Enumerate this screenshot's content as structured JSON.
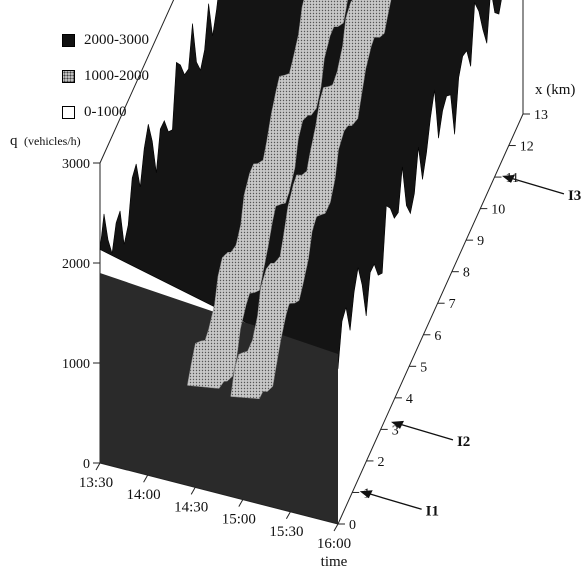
{
  "chart_data": {
    "type": "3d-surface",
    "title": "",
    "legend": {
      "placement": "top-left",
      "items": [
        {
          "label": "2000-3000",
          "color": "#111111",
          "pattern": "solid"
        },
        {
          "label": "1000-2000",
          "color": "#9a9a9a",
          "pattern": "dotted"
        },
        {
          "label": "0-1000",
          "color": "#ffffff",
          "pattern": "empty"
        }
      ]
    },
    "z_axis": {
      "label": "q",
      "unit": "(vehicles/h)",
      "ticks": [
        "0",
        "1000",
        "2000",
        "3000"
      ],
      "range": [
        0,
        3000
      ]
    },
    "time_axis": {
      "label": "time",
      "ticks": [
        "13:30",
        "14:00",
        "14:30",
        "15:00",
        "15:30",
        "16:00"
      ],
      "range": [
        "13:30",
        "16:00"
      ]
    },
    "x_axis": {
      "label": "x (km)",
      "ticks": [
        "0",
        "1",
        "2",
        "3",
        "4",
        "5",
        "6",
        "7",
        "8",
        "9",
        "10",
        "11",
        "12",
        "13"
      ],
      "range": [
        0,
        13
      ]
    },
    "markers": [
      {
        "label": "I1",
        "x_km": 1.1
      },
      {
        "label": "I2",
        "x_km": 3.3
      },
      {
        "label": "I3",
        "x_km": 11.1
      }
    ],
    "congested_bands": [
      {
        "x_km": 0,
        "t_start": "14:25",
        "t_end": "14:45"
      },
      {
        "x_km": 13,
        "t_start": "13:52",
        "t_end": "14:12"
      },
      {
        "x_km": 0,
        "t_start": "14:52",
        "t_end": "15:10"
      },
      {
        "x_km": 13,
        "t_start": "14:20",
        "t_end": "14:38"
      }
    ],
    "typical_flow_ranges": {
      "free_flow": [
        2000,
        3000
      ],
      "congested": [
        0,
        1000
      ]
    }
  }
}
